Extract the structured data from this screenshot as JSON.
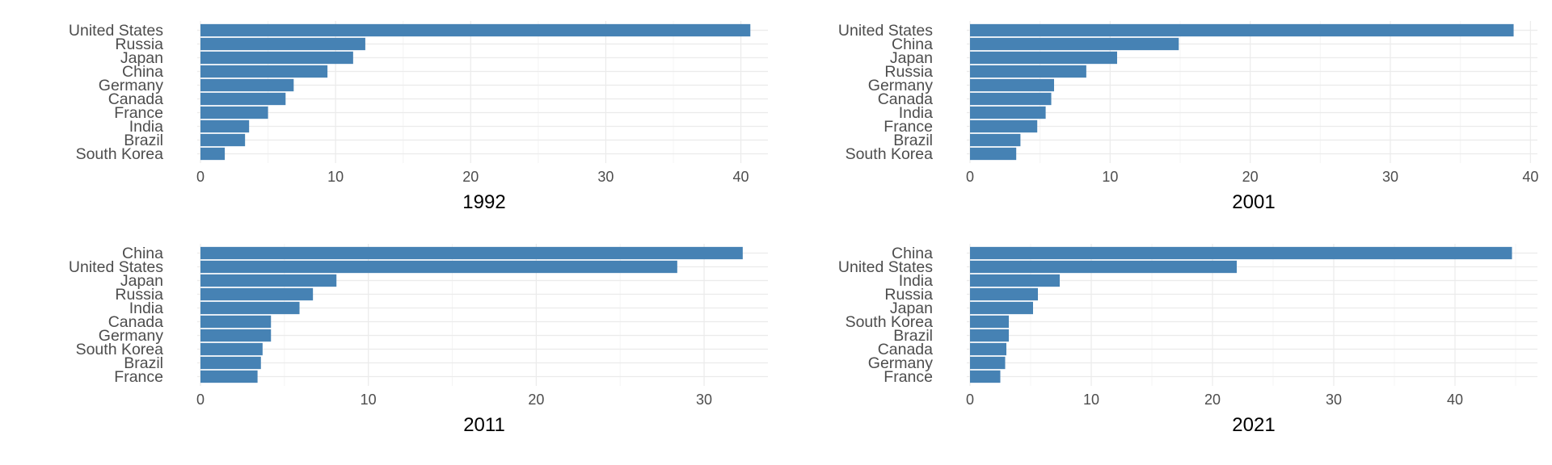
{
  "style": {
    "bar_color": "#4682B4",
    "grid_major_color": "#ebebeb",
    "grid_minor_color": "#f4f4f4",
    "text_color": "#4d4d4d",
    "title_color": "#000000"
  },
  "chart_data": [
    {
      "type": "bar",
      "orientation": "horizontal",
      "title": "1992",
      "categories": [
        "United States",
        "Russia",
        "Japan",
        "China",
        "Germany",
        "Canada",
        "France",
        "India",
        "Brazil",
        "South Korea"
      ],
      "values": [
        40.7,
        12.2,
        11.3,
        9.4,
        6.9,
        6.3,
        5.0,
        3.6,
        3.3,
        1.8
      ],
      "xlim": [
        0,
        42
      ],
      "xticks": [
        0,
        10,
        20,
        30,
        40
      ],
      "grid": true
    },
    {
      "type": "bar",
      "orientation": "horizontal",
      "title": "2001",
      "categories": [
        "United States",
        "China",
        "Japan",
        "Russia",
        "Germany",
        "Canada",
        "India",
        "France",
        "Brazil",
        "South Korea"
      ],
      "values": [
        38.8,
        14.9,
        10.5,
        8.3,
        6.0,
        5.8,
        5.4,
        4.8,
        3.6,
        3.3
      ],
      "xlim": [
        0,
        40.5
      ],
      "xticks": [
        0,
        10,
        20,
        30,
        40
      ],
      "grid": true
    },
    {
      "type": "bar",
      "orientation": "horizontal",
      "title": "2011",
      "categories": [
        "China",
        "United States",
        "Japan",
        "Russia",
        "India",
        "Canada",
        "Germany",
        "South Korea",
        "Brazil",
        "France"
      ],
      "values": [
        32.3,
        28.4,
        8.1,
        6.7,
        5.9,
        4.2,
        4.2,
        3.7,
        3.6,
        3.4
      ],
      "xlim": [
        0,
        33.8
      ],
      "xticks": [
        0,
        10,
        20,
        30
      ],
      "grid": true
    },
    {
      "type": "bar",
      "orientation": "horizontal",
      "title": "2021",
      "categories": [
        "China",
        "United States",
        "India",
        "Russia",
        "Japan",
        "South Korea",
        "Brazil",
        "Canada",
        "Germany",
        "France"
      ],
      "values": [
        44.7,
        22.0,
        7.4,
        5.6,
        5.2,
        3.2,
        3.2,
        3.0,
        2.9,
        2.5
      ],
      "xlim": [
        0,
        46.8
      ],
      "xticks": [
        0,
        10,
        20,
        30,
        40
      ],
      "grid": true
    }
  ]
}
